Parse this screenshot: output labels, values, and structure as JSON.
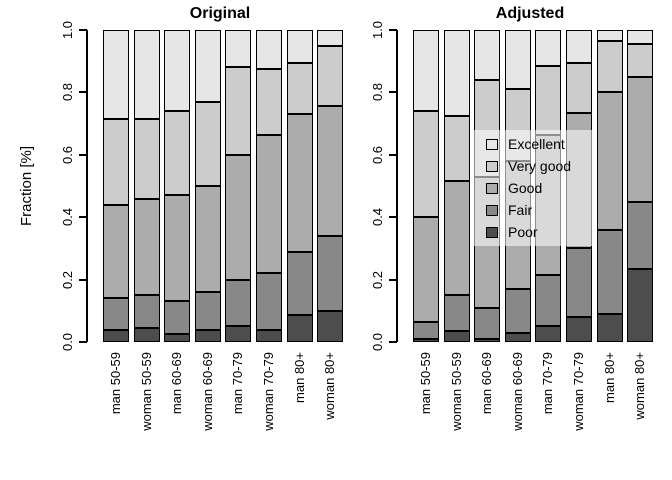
{
  "chart_data": {
    "type": "bar",
    "stacked": true,
    "ylabel": "Fraction [%]",
    "ylim": [
      0,
      1
    ],
    "ytick_labels": [
      "0.0",
      "0.2",
      "0.4",
      "0.6",
      "0.8",
      "1.0"
    ],
    "ytick_values": [
      0.0,
      0.2,
      0.4,
      0.6,
      0.8,
      1.0
    ],
    "grid": false,
    "categories": [
      "man 50-59",
      "woman 50-59",
      "man 60-69",
      "woman 60-69",
      "man 70-79",
      "woman 70-79",
      "man 80+",
      "woman 80+"
    ],
    "stack_order_bottom_to_top": [
      "Poor",
      "Fair",
      "Good",
      "Very good",
      "Excellent"
    ],
    "series_colors": {
      "Poor": "#4D4D4D",
      "Fair": "#888888",
      "Good": "#ACACAC",
      "Very good": "#CCCCCC",
      "Excellent": "#E6E6E6"
    },
    "panels": [
      {
        "title": "Original",
        "series": [
          {
            "name": "Poor",
            "values": [
              0.04,
              0.045,
              0.025,
              0.04,
              0.05,
              0.04,
              0.085,
              0.1
            ]
          },
          {
            "name": "Fair",
            "values": [
              0.1,
              0.105,
              0.105,
              0.12,
              0.15,
              0.18,
              0.205,
              0.24
            ]
          },
          {
            "name": "Good",
            "values": [
              0.3,
              0.31,
              0.34,
              0.34,
              0.4,
              0.445,
              0.44,
              0.415
            ]
          },
          {
            "name": "Very good",
            "values": [
              0.275,
              0.255,
              0.27,
              0.27,
              0.28,
              0.21,
              0.165,
              0.195
            ]
          },
          {
            "name": "Excellent",
            "values": [
              0.285,
              0.285,
              0.26,
              0.23,
              0.12,
              0.125,
              0.105,
              0.05
            ]
          }
        ]
      },
      {
        "title": "Adjusted",
        "series": [
          {
            "name": "Poor",
            "values": [
              0.01,
              0.035,
              0.01,
              0.03,
              0.05,
              0.08,
              0.09,
              0.235
            ]
          },
          {
            "name": "Fair",
            "values": [
              0.055,
              0.115,
              0.1,
              0.14,
              0.165,
              0.22,
              0.27,
              0.215
            ]
          },
          {
            "name": "Good",
            "values": [
              0.335,
              0.365,
              0.42,
              0.41,
              0.45,
              0.435,
              0.44,
              0.4
            ]
          },
          {
            "name": "Very good",
            "values": [
              0.34,
              0.21,
              0.31,
              0.23,
              0.22,
              0.16,
              0.165,
              0.105
            ]
          },
          {
            "name": "Excellent",
            "values": [
              0.26,
              0.275,
              0.16,
              0.19,
              0.115,
              0.105,
              0.035,
              0.045
            ]
          }
        ]
      }
    ],
    "legend": {
      "position": "center-of-right-panel",
      "background": "rgba(255,255,255,0.55)",
      "entries": [
        {
          "label": "Excellent",
          "color": "#E6E6E6"
        },
        {
          "label": "Very good",
          "color": "#CCCCCC"
        },
        {
          "label": "Good",
          "color": "#ACACAC"
        },
        {
          "label": "Fair",
          "color": "#888888"
        },
        {
          "label": "Poor",
          "color": "#4D4D4D"
        }
      ]
    }
  }
}
